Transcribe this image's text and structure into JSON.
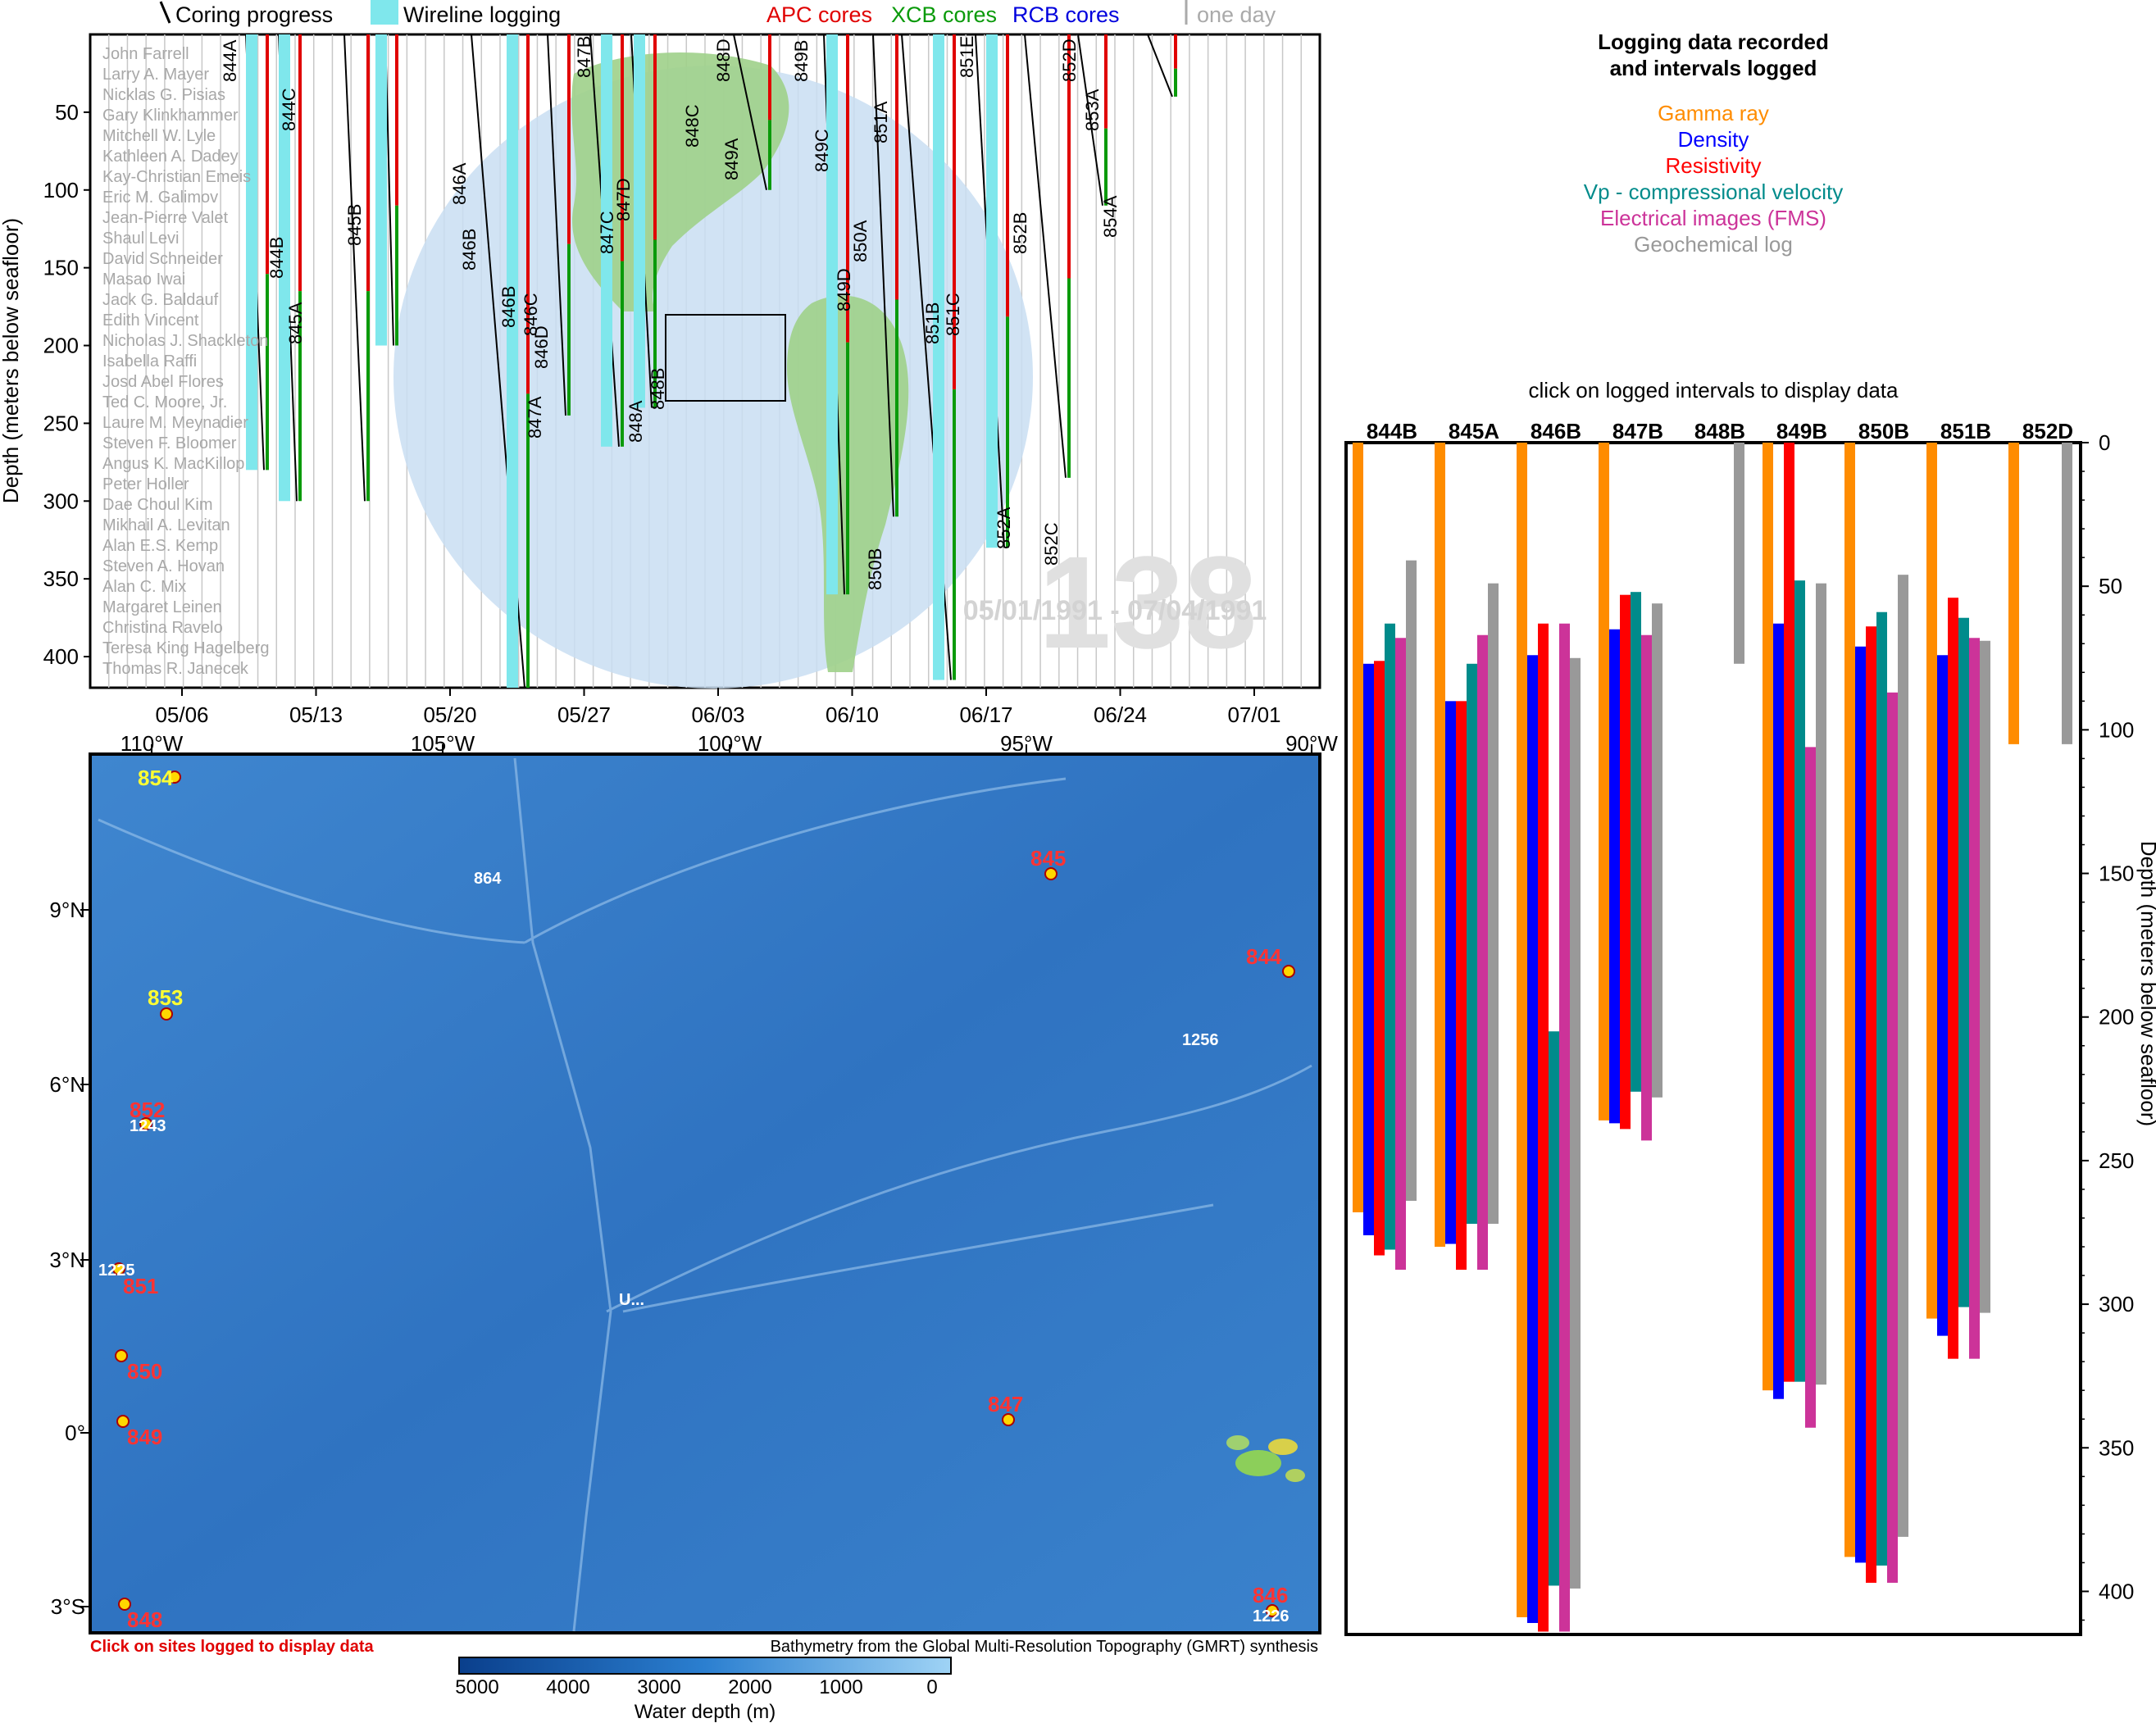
{
  "top_panel": {
    "legend": {
      "coring": "Coring progress",
      "wireline": "Wireline logging",
      "apc": "APC cores",
      "xcb": "XCB cores",
      "rcb": "RCB cores",
      "one_day": "one day"
    },
    "y_axis_label": "Depth (meters below seafloor)",
    "y_ticks": [
      "50",
      "100",
      "150",
      "200",
      "250",
      "300",
      "350",
      "400"
    ],
    "x_ticks": [
      "05/06",
      "05/13",
      "05/20",
      "05/27",
      "06/03",
      "06/10",
      "06/17",
      "06/24",
      "07/01"
    ],
    "leg_number": "138",
    "date_range": "05/01/1991 - 07/04/1991",
    "scientists": [
      "John Farrell",
      "Larry A. Mayer",
      "Nicklas G. Pisias",
      "Gary Klinkhammer",
      "Mitchell W. Lyle",
      "Kathleen A. Dadey",
      "Kay-Christian Emeis",
      "Eric M. Galimov",
      "Jean-Pierre Valet",
      "Shaul Levi",
      "David Schneider",
      "Masao Iwai",
      "Jack G. Baldauf",
      "Edith Vincent",
      "Nicholas J. Shackleton",
      "Isabella Raffi",
      "Josd Abel Flores",
      "Ted C. Moore, Jr.",
      "Laure M. Meynadier",
      "Steven F. Bloomer",
      "Angus K. MacKillop",
      "Peter Holler",
      "Dae Choul Kim",
      "Mikhail A. Levitan",
      "Alan E.S. Kemp",
      "Steven A. Hovan",
      "Alan C. Mix",
      "Margaret Leinen",
      "Christina Ravelo",
      "Teresa King Hagelberg",
      "Thomas R. Janecek"
    ],
    "hole_labels": [
      "844A",
      "844B",
      "844C",
      "845A",
      "845B",
      "846A",
      "846B",
      "846B",
      "846C",
      "846D",
      "847A",
      "847B",
      "847C",
      "847D",
      "848A",
      "848B",
      "848C",
      "848D",
      "849A",
      "849B",
      "849C",
      "849D",
      "850A",
      "850B",
      "851A",
      "851B",
      "851C",
      "851E",
      "852A",
      "852B",
      "852C",
      "852D",
      "853A",
      "854A"
    ]
  },
  "map_panel": {
    "lon_labels": [
      "110°W",
      "105°W",
      "100°W",
      "95°W",
      "90°W"
    ],
    "lat_labels": [
      "9°N",
      "6°N",
      "3°N",
      "0°",
      "3°S"
    ],
    "sites": [
      "854",
      "853",
      "852",
      "851",
      "850",
      "849",
      "848",
      "845",
      "844",
      "847",
      "846"
    ],
    "other_labels": [
      "864",
      "1256",
      "1243",
      "1225",
      "1226",
      "U..."
    ],
    "click_note": "Click on sites logged to display data",
    "credit": "Bathymetry from the Global Multi-Resolution Topography (GMRT) synthesis",
    "colorbar_ticks": [
      "5000",
      "4000",
      "3000",
      "2000",
      "1000",
      "0"
    ],
    "colorbar_label": "Water depth (m)"
  },
  "legend_box": {
    "title_line1": "Logging data recorded",
    "title_line2": "and intervals logged",
    "items": [
      {
        "label": "Gamma ray",
        "color": "#ff8c00"
      },
      {
        "label": "Density",
        "color": "#0000ff"
      },
      {
        "label": "Resistivity",
        "color": "#ff0000"
      },
      {
        "label": "Vp - compressional velocity",
        "color": "#008b8b"
      },
      {
        "label": "Electrical images (FMS)",
        "color": "#cc3399"
      },
      {
        "label": "Geochemical log",
        "color": "#999999"
      }
    ]
  },
  "chart_data": {
    "type": "bar",
    "title": "click on logged intervals to display data",
    "ylabel": "Depth (meters below seafloor)",
    "ylim": [
      0,
      415
    ],
    "y_ticks": [
      0,
      50,
      100,
      150,
      200,
      250,
      300,
      350,
      400
    ],
    "categories": [
      "844B",
      "845A",
      "846B",
      "847B",
      "848B",
      "849B",
      "850B",
      "851B",
      "852D"
    ],
    "series": [
      {
        "name": "Gamma ray",
        "color": "#ff8c00",
        "intervals": [
          [
            0,
            268
          ],
          [
            0,
            280
          ],
          [
            0,
            409
          ],
          [
            0,
            236
          ],
          null,
          [
            0,
            330
          ],
          [
            0,
            388
          ],
          [
            0,
            305
          ],
          [
            0,
            105
          ]
        ]
      },
      {
        "name": "Density",
        "color": "#0000ff",
        "intervals": [
          [
            77,
            276
          ],
          [
            90,
            279
          ],
          [
            74,
            411
          ],
          [
            65,
            237
          ],
          null,
          [
            63,
            333
          ],
          [
            71,
            390
          ],
          [
            74,
            311
          ],
          null
        ]
      },
      {
        "name": "Resistivity",
        "color": "#ff0000",
        "intervals": [
          [
            76,
            283
          ],
          [
            90,
            288
          ],
          [
            63,
            414
          ],
          [
            53,
            239
          ],
          null,
          [
            0,
            327
          ],
          [
            64,
            397
          ],
          [
            54,
            319
          ],
          null
        ]
      },
      {
        "name": "Vp - compressional velocity",
        "color": "#008b8b",
        "intervals": [
          [
            63,
            281
          ],
          [
            77,
            272
          ],
          [
            205,
            398
          ],
          [
            52,
            226
          ],
          null,
          [
            48,
            327
          ],
          [
            59,
            391
          ],
          [
            61,
            301
          ],
          null
        ]
      },
      {
        "name": "Electrical images (FMS)",
        "color": "#cc3399",
        "intervals": [
          [
            68,
            288
          ],
          [
            67,
            288
          ],
          [
            63,
            414
          ],
          [
            67,
            243
          ],
          null,
          [
            106,
            343
          ],
          [
            87,
            397
          ],
          [
            68,
            319
          ],
          null
        ]
      },
      {
        "name": "Geochemical log",
        "color": "#999999",
        "intervals": [
          [
            41,
            264
          ],
          [
            49,
            272
          ],
          [
            75,
            399
          ],
          [
            56,
            228
          ],
          [
            0,
            77
          ],
          [
            49,
            328
          ],
          [
            46,
            381
          ],
          [
            69,
            303
          ],
          [
            0,
            105
          ]
        ]
      }
    ]
  }
}
